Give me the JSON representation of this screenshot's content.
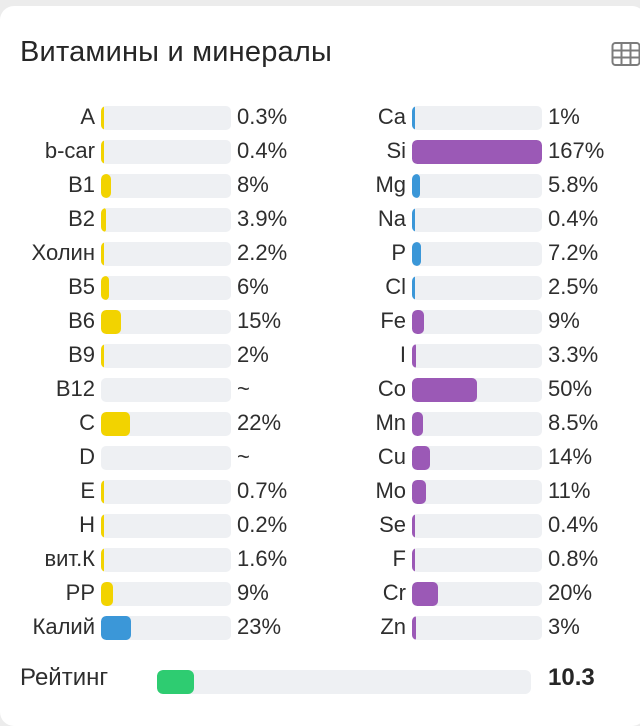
{
  "title": "Витамины и минералы",
  "table_icon": "table-grid-icon",
  "colors": {
    "vitamin": "#f2d300",
    "potassium": "#3b97d8",
    "mineral_blue": "#3b97d8",
    "mineral_purple": "#9b59b6",
    "rating": "#2ecc71",
    "track": "#eef0f3"
  },
  "vitamins": [
    {
      "name": "A",
      "value": "0.3%",
      "percent": 0.3,
      "color": "#f2d300"
    },
    {
      "name": "b-car",
      "value": "0.4%",
      "percent": 0.4,
      "color": "#f2d300"
    },
    {
      "name": "B1",
      "value": "8%",
      "percent": 8,
      "color": "#f2d300"
    },
    {
      "name": "B2",
      "value": "3.9%",
      "percent": 3.9,
      "color": "#f2d300"
    },
    {
      "name": "Холин",
      "value": "2.2%",
      "percent": 2.2,
      "color": "#f2d300"
    },
    {
      "name": "B5",
      "value": "6%",
      "percent": 6,
      "color": "#f2d300"
    },
    {
      "name": "B6",
      "value": "15%",
      "percent": 15,
      "color": "#f2d300"
    },
    {
      "name": "B9",
      "value": "2%",
      "percent": 2,
      "color": "#f2d300"
    },
    {
      "name": "B12",
      "value": "~",
      "percent": 0,
      "color": "#f2d300"
    },
    {
      "name": "C",
      "value": "22%",
      "percent": 22,
      "color": "#f2d300"
    },
    {
      "name": "D",
      "value": "~",
      "percent": 0,
      "color": "#f2d300"
    },
    {
      "name": "E",
      "value": "0.7%",
      "percent": 0.7,
      "color": "#f2d300"
    },
    {
      "name": "H",
      "value": "0.2%",
      "percent": 0.2,
      "color": "#f2d300"
    },
    {
      "name": "вит.К",
      "value": "1.6%",
      "percent": 1.6,
      "color": "#f2d300"
    },
    {
      "name": "PP",
      "value": "9%",
      "percent": 9,
      "color": "#f2d300"
    },
    {
      "name": "Калий",
      "value": "23%",
      "percent": 23,
      "color": "#3b97d8"
    }
  ],
  "minerals": [
    {
      "name": "Ca",
      "value": "1%",
      "percent": 1,
      "color": "#3b97d8"
    },
    {
      "name": "Si",
      "value": "167%",
      "percent": 167,
      "color": "#9b59b6"
    },
    {
      "name": "Mg",
      "value": "5.8%",
      "percent": 5.8,
      "color": "#3b97d8"
    },
    {
      "name": "Na",
      "value": "0.4%",
      "percent": 0.4,
      "color": "#3b97d8"
    },
    {
      "name": "P",
      "value": "7.2%",
      "percent": 7.2,
      "color": "#3b97d8"
    },
    {
      "name": "Cl",
      "value": "2.5%",
      "percent": 2.5,
      "color": "#3b97d8"
    },
    {
      "name": "Fe",
      "value": "9%",
      "percent": 9,
      "color": "#9b59b6"
    },
    {
      "name": "I",
      "value": "3.3%",
      "percent": 3.3,
      "color": "#9b59b6"
    },
    {
      "name": "Co",
      "value": "50%",
      "percent": 50,
      "color": "#9b59b6"
    },
    {
      "name": "Mn",
      "value": "8.5%",
      "percent": 8.5,
      "color": "#9b59b6"
    },
    {
      "name": "Cu",
      "value": "14%",
      "percent": 14,
      "color": "#9b59b6"
    },
    {
      "name": "Mo",
      "value": "11%",
      "percent": 11,
      "color": "#9b59b6"
    },
    {
      "name": "Se",
      "value": "0.4%",
      "percent": 0.4,
      "color": "#9b59b6"
    },
    {
      "name": "F",
      "value": "0.8%",
      "percent": 0.8,
      "color": "#9b59b6"
    },
    {
      "name": "Cr",
      "value": "20%",
      "percent": 20,
      "color": "#9b59b6"
    },
    {
      "name": "Zn",
      "value": "3%",
      "percent": 3,
      "color": "#9b59b6"
    }
  ],
  "rating": {
    "label": "Рейтинг",
    "value": "10.3",
    "fraction": 0.1,
    "color": "#2ecc71"
  }
}
